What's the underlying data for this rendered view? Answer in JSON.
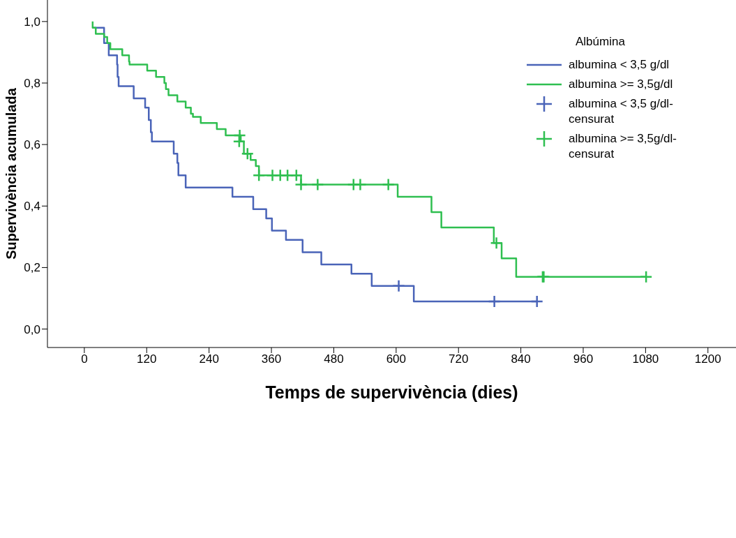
{
  "chart_data": {
    "type": "step",
    "xlabel": "Temps de supervivència (dies)",
    "ylabel": "Supervivència acumulada",
    "legend_title": "Albúmina",
    "legend": "top right",
    "grid": false,
    "xlim": [
      -71,
      1254
    ],
    "xticks": [
      0,
      120,
      240,
      360,
      480,
      600,
      720,
      840,
      960,
      1080,
      1200
    ],
    "ylim": [
      -0.06,
      1.07
    ],
    "yticks": [
      {
        "value": 0,
        "label": "0,0"
      },
      {
        "value": 0.2,
        "label": "0,2"
      },
      {
        "value": 0.4,
        "label": "0,4"
      },
      {
        "value": 0.6,
        "label": "0,6"
      },
      {
        "value": 0.8,
        "label": "0,8"
      },
      {
        "value": 1,
        "label": "1,0"
      }
    ],
    "series": [
      {
        "name": "albumina < 3,5 g/dl",
        "color": "#4a64b8",
        "marker": "none",
        "x": [
          16,
          38,
          47,
          63,
          64,
          66,
          95,
          117,
          124,
          128,
          130,
          172,
          179,
          181,
          195,
          285,
          325,
          350,
          361,
          388,
          420,
          456,
          514,
          553,
          634,
          871
        ],
        "values": [
          0.98,
          0.93,
          0.89,
          0.86,
          0.82,
          0.79,
          0.75,
          0.72,
          0.68,
          0.64,
          0.61,
          0.57,
          0.54,
          0.5,
          0.46,
          0.43,
          0.39,
          0.36,
          0.32,
          0.29,
          0.25,
          0.21,
          0.18,
          0.14,
          0.09,
          0.09
        ]
      },
      {
        "name": "albumina >= 3,5g/dl",
        "color": "#2fbf50",
        "marker": "none",
        "x": [
          16,
          16,
          22,
          38,
          44,
          50,
          73,
          86,
          87,
          121,
          138,
          154,
          157,
          162,
          179,
          195,
          205,
          209,
          224,
          255,
          272,
          301,
          307,
          320,
          330,
          336,
          417,
          603,
          668,
          687,
          788,
          803,
          831,
          1081
        ],
        "values": [
          1,
          0.98,
          0.96,
          0.95,
          0.93,
          0.91,
          0.89,
          0.87,
          0.86,
          0.84,
          0.82,
          0.8,
          0.78,
          0.76,
          0.74,
          0.72,
          0.7,
          0.69,
          0.67,
          0.65,
          0.63,
          0.61,
          0.57,
          0.55,
          0.53,
          0.5,
          0.47,
          0.43,
          0.38,
          0.33,
          0.28,
          0.23,
          0.17,
          0.17
        ]
      },
      {
        "name": "albumina < 3,5 g/dl-censurat",
        "type": "scatter",
        "color": "#4a64b8",
        "marker": "cross",
        "x": [
          605,
          789,
          871
        ],
        "values": [
          0.14,
          0.09,
          0.09
        ]
      },
      {
        "name": "albumina >= 3,5g/dl-censurat",
        "type": "scatter",
        "color": "#2fbf50",
        "marker": "cross",
        "x": [
          299,
          298,
          314,
          336,
          362,
          377,
          391,
          408,
          417,
          449,
          518,
          531,
          585,
          793,
          882,
          884,
          1081
        ],
        "values": [
          0.63,
          0.61,
          0.57,
          0.5,
          0.5,
          0.5,
          0.5,
          0.5,
          0.47,
          0.47,
          0.47,
          0.47,
          0.47,
          0.28,
          0.17,
          0.17,
          0.17
        ]
      }
    ]
  }
}
